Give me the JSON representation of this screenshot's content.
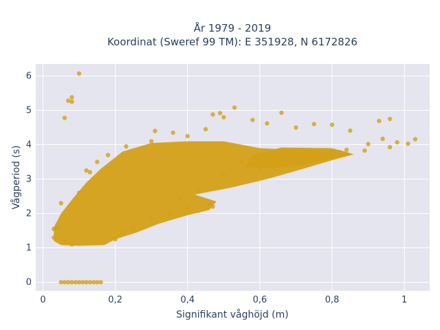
{
  "chart_data": {
    "type": "scatter",
    "title_lines": [
      "År 1979 - 2019",
      "Koordinat (Sweref 99 TM): E 351928, N 6172826"
    ],
    "xlabel": "Signifikant våghöjd (m)",
    "ylabel": "Vågperiod (s)",
    "xlim": [
      -0.02,
      1.07
    ],
    "ylim": [
      -0.25,
      6.35
    ],
    "x_ticks": [
      0,
      0.2,
      0.4,
      0.6,
      0.8,
      1.0
    ],
    "x_tick_labels": [
      "0",
      "0,2",
      "0,4",
      "0,6",
      "0,8",
      "1"
    ],
    "y_ticks": [
      0,
      1,
      2,
      3,
      4,
      5,
      6
    ],
    "y_tick_labels": [
      "0",
      "1",
      "2",
      "3",
      "4",
      "5",
      "6"
    ],
    "grid": true,
    "colors": {
      "marker": "#D4A017",
      "plot_bg": "#E5E5F0",
      "grid": "#ffffff",
      "text": "#2a3f5f"
    },
    "series": [
      {
        "marker_opacity": 0.8,
        "representative_points": [
          {
            "x": 0.1,
            "y": 6.07
          },
          {
            "x": 0.08,
            "y": 5.38
          },
          {
            "x": 0.07,
            "y": 5.28
          },
          {
            "x": 0.08,
            "y": 5.25
          },
          {
            "x": 0.06,
            "y": 4.78
          },
          {
            "x": 0.53,
            "y": 5.08
          },
          {
            "x": 0.66,
            "y": 4.93
          },
          {
            "x": 0.49,
            "y": 4.92
          },
          {
            "x": 0.96,
            "y": 4.75
          },
          {
            "x": 0.93,
            "y": 4.69
          },
          {
            "x": 0.75,
            "y": 4.6
          },
          {
            "x": 0.8,
            "y": 4.58
          },
          {
            "x": 1.03,
            "y": 4.16
          },
          {
            "x": 1.01,
            "y": 4.03
          },
          {
            "x": 0.98,
            "y": 4.07
          },
          {
            "x": 0.96,
            "y": 3.93
          },
          {
            "x": 0.9,
            "y": 4.02
          },
          {
            "x": 0.89,
            "y": 3.83
          },
          {
            "x": 0.84,
            "y": 3.85
          },
          {
            "x": 0.8,
            "y": 3.79
          },
          {
            "x": 0.94,
            "y": 4.17
          },
          {
            "x": 0.85,
            "y": 4.41
          },
          {
            "x": 0.05,
            "y": 0
          },
          {
            "x": 0.06,
            "y": 0
          },
          {
            "x": 0.07,
            "y": 0
          },
          {
            "x": 0.08,
            "y": 0
          },
          {
            "x": 0.09,
            "y": 0
          },
          {
            "x": 0.1,
            "y": 0
          },
          {
            "x": 0.11,
            "y": 0
          },
          {
            "x": 0.12,
            "y": 0
          },
          {
            "x": 0.13,
            "y": 0
          },
          {
            "x": 0.14,
            "y": 0
          },
          {
            "x": 0.15,
            "y": 0
          },
          {
            "x": 0.16,
            "y": 0
          },
          {
            "x": 0.03,
            "y": 1.55
          },
          {
            "x": 0.03,
            "y": 1.3
          },
          {
            "x": 0.04,
            "y": 1.6
          },
          {
            "x": 0.05,
            "y": 2.3
          },
          {
            "x": 0.06,
            "y": 1.2
          },
          {
            "x": 0.08,
            "y": 1.1
          },
          {
            "x": 0.1,
            "y": 2.6
          },
          {
            "x": 0.12,
            "y": 3.25
          },
          {
            "x": 0.13,
            "y": 3.2
          },
          {
            "x": 0.15,
            "y": 3.5
          },
          {
            "x": 0.18,
            "y": 3.7
          },
          {
            "x": 0.23,
            "y": 3.95
          },
          {
            "x": 0.3,
            "y": 4.1
          },
          {
            "x": 0.31,
            "y": 4.4
          },
          {
            "x": 0.36,
            "y": 4.35
          },
          {
            "x": 0.4,
            "y": 4.25
          },
          {
            "x": 0.45,
            "y": 4.45
          },
          {
            "x": 0.47,
            "y": 4.88
          },
          {
            "x": 0.5,
            "y": 4.8
          },
          {
            "x": 0.58,
            "y": 4.72
          },
          {
            "x": 0.62,
            "y": 4.62
          },
          {
            "x": 0.7,
            "y": 4.5
          },
          {
            "x": 0.72,
            "y": 3.72
          },
          {
            "x": 0.75,
            "y": 3.65
          },
          {
            "x": 0.55,
            "y": 3.5
          },
          {
            "x": 0.6,
            "y": 3.3
          },
          {
            "x": 0.5,
            "y": 3.1
          },
          {
            "x": 0.2,
            "y": 1.25
          },
          {
            "x": 0.22,
            "y": 1.45
          },
          {
            "x": 0.25,
            "y": 1.6
          },
          {
            "x": 0.3,
            "y": 1.85
          },
          {
            "x": 0.35,
            "y": 2.0
          },
          {
            "x": 0.4,
            "y": 2.15
          },
          {
            "x": 0.46,
            "y": 2.25
          },
          {
            "x": 0.47,
            "y": 2.2
          },
          {
            "x": 0.38,
            "y": 2.45
          },
          {
            "x": 0.43,
            "y": 2.65
          }
        ]
      }
    ]
  }
}
